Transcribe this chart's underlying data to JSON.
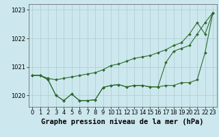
{
  "x": [
    0,
    1,
    2,
    3,
    4,
    5,
    6,
    7,
    8,
    9,
    10,
    11,
    12,
    13,
    14,
    15,
    16,
    17,
    18,
    19,
    20,
    21,
    22,
    23
  ],
  "line1": [
    1020.7,
    1020.7,
    1020.6,
    1020.55,
    1020.6,
    1020.65,
    1020.7,
    1020.75,
    1020.8,
    1020.9,
    1021.05,
    1021.1,
    1021.2,
    1021.3,
    1021.35,
    1021.4,
    1021.5,
    1021.6,
    1021.75,
    1021.85,
    1022.15,
    1022.55,
    1022.15,
    1022.9
  ],
  "line2": [
    1020.7,
    1020.7,
    1020.55,
    1020.0,
    1019.82,
    1020.05,
    1019.82,
    1019.82,
    1019.85,
    1020.28,
    1020.35,
    1020.38,
    1020.3,
    1020.35,
    1020.35,
    1020.3,
    1020.3,
    1020.35,
    1020.35,
    1020.45,
    1020.45,
    1020.55,
    1021.5,
    1022.9
  ],
  "line3": [
    1020.7,
    1020.7,
    1020.55,
    1020.0,
    1019.82,
    1020.05,
    1019.82,
    1019.82,
    1019.85,
    1020.28,
    1020.35,
    1020.38,
    1020.3,
    1020.35,
    1020.35,
    1020.3,
    1020.3,
    1021.15,
    1021.55,
    1021.65,
    1021.75,
    1022.15,
    1022.55,
    1022.9
  ],
  "ylim": [
    1019.6,
    1023.2
  ],
  "yticks": [
    1020,
    1021,
    1022,
    1023
  ],
  "xticks": [
    0,
    1,
    2,
    3,
    4,
    5,
    6,
    7,
    8,
    9,
    10,
    11,
    12,
    13,
    14,
    15,
    16,
    17,
    18,
    19,
    20,
    21,
    22,
    23
  ],
  "line_color": "#2d6a2d",
  "bg_plot": "#cce8ee",
  "bg_fig": "#cce8ee",
  "grid_color": "#aacccc",
  "xlabel": "Graphe pression niveau de la mer (hPa)",
  "xlabel_fontsize": 7.5,
  "tick_fontsize": 6,
  "marker": "D",
  "marker_size": 2.0,
  "linewidth": 0.8
}
